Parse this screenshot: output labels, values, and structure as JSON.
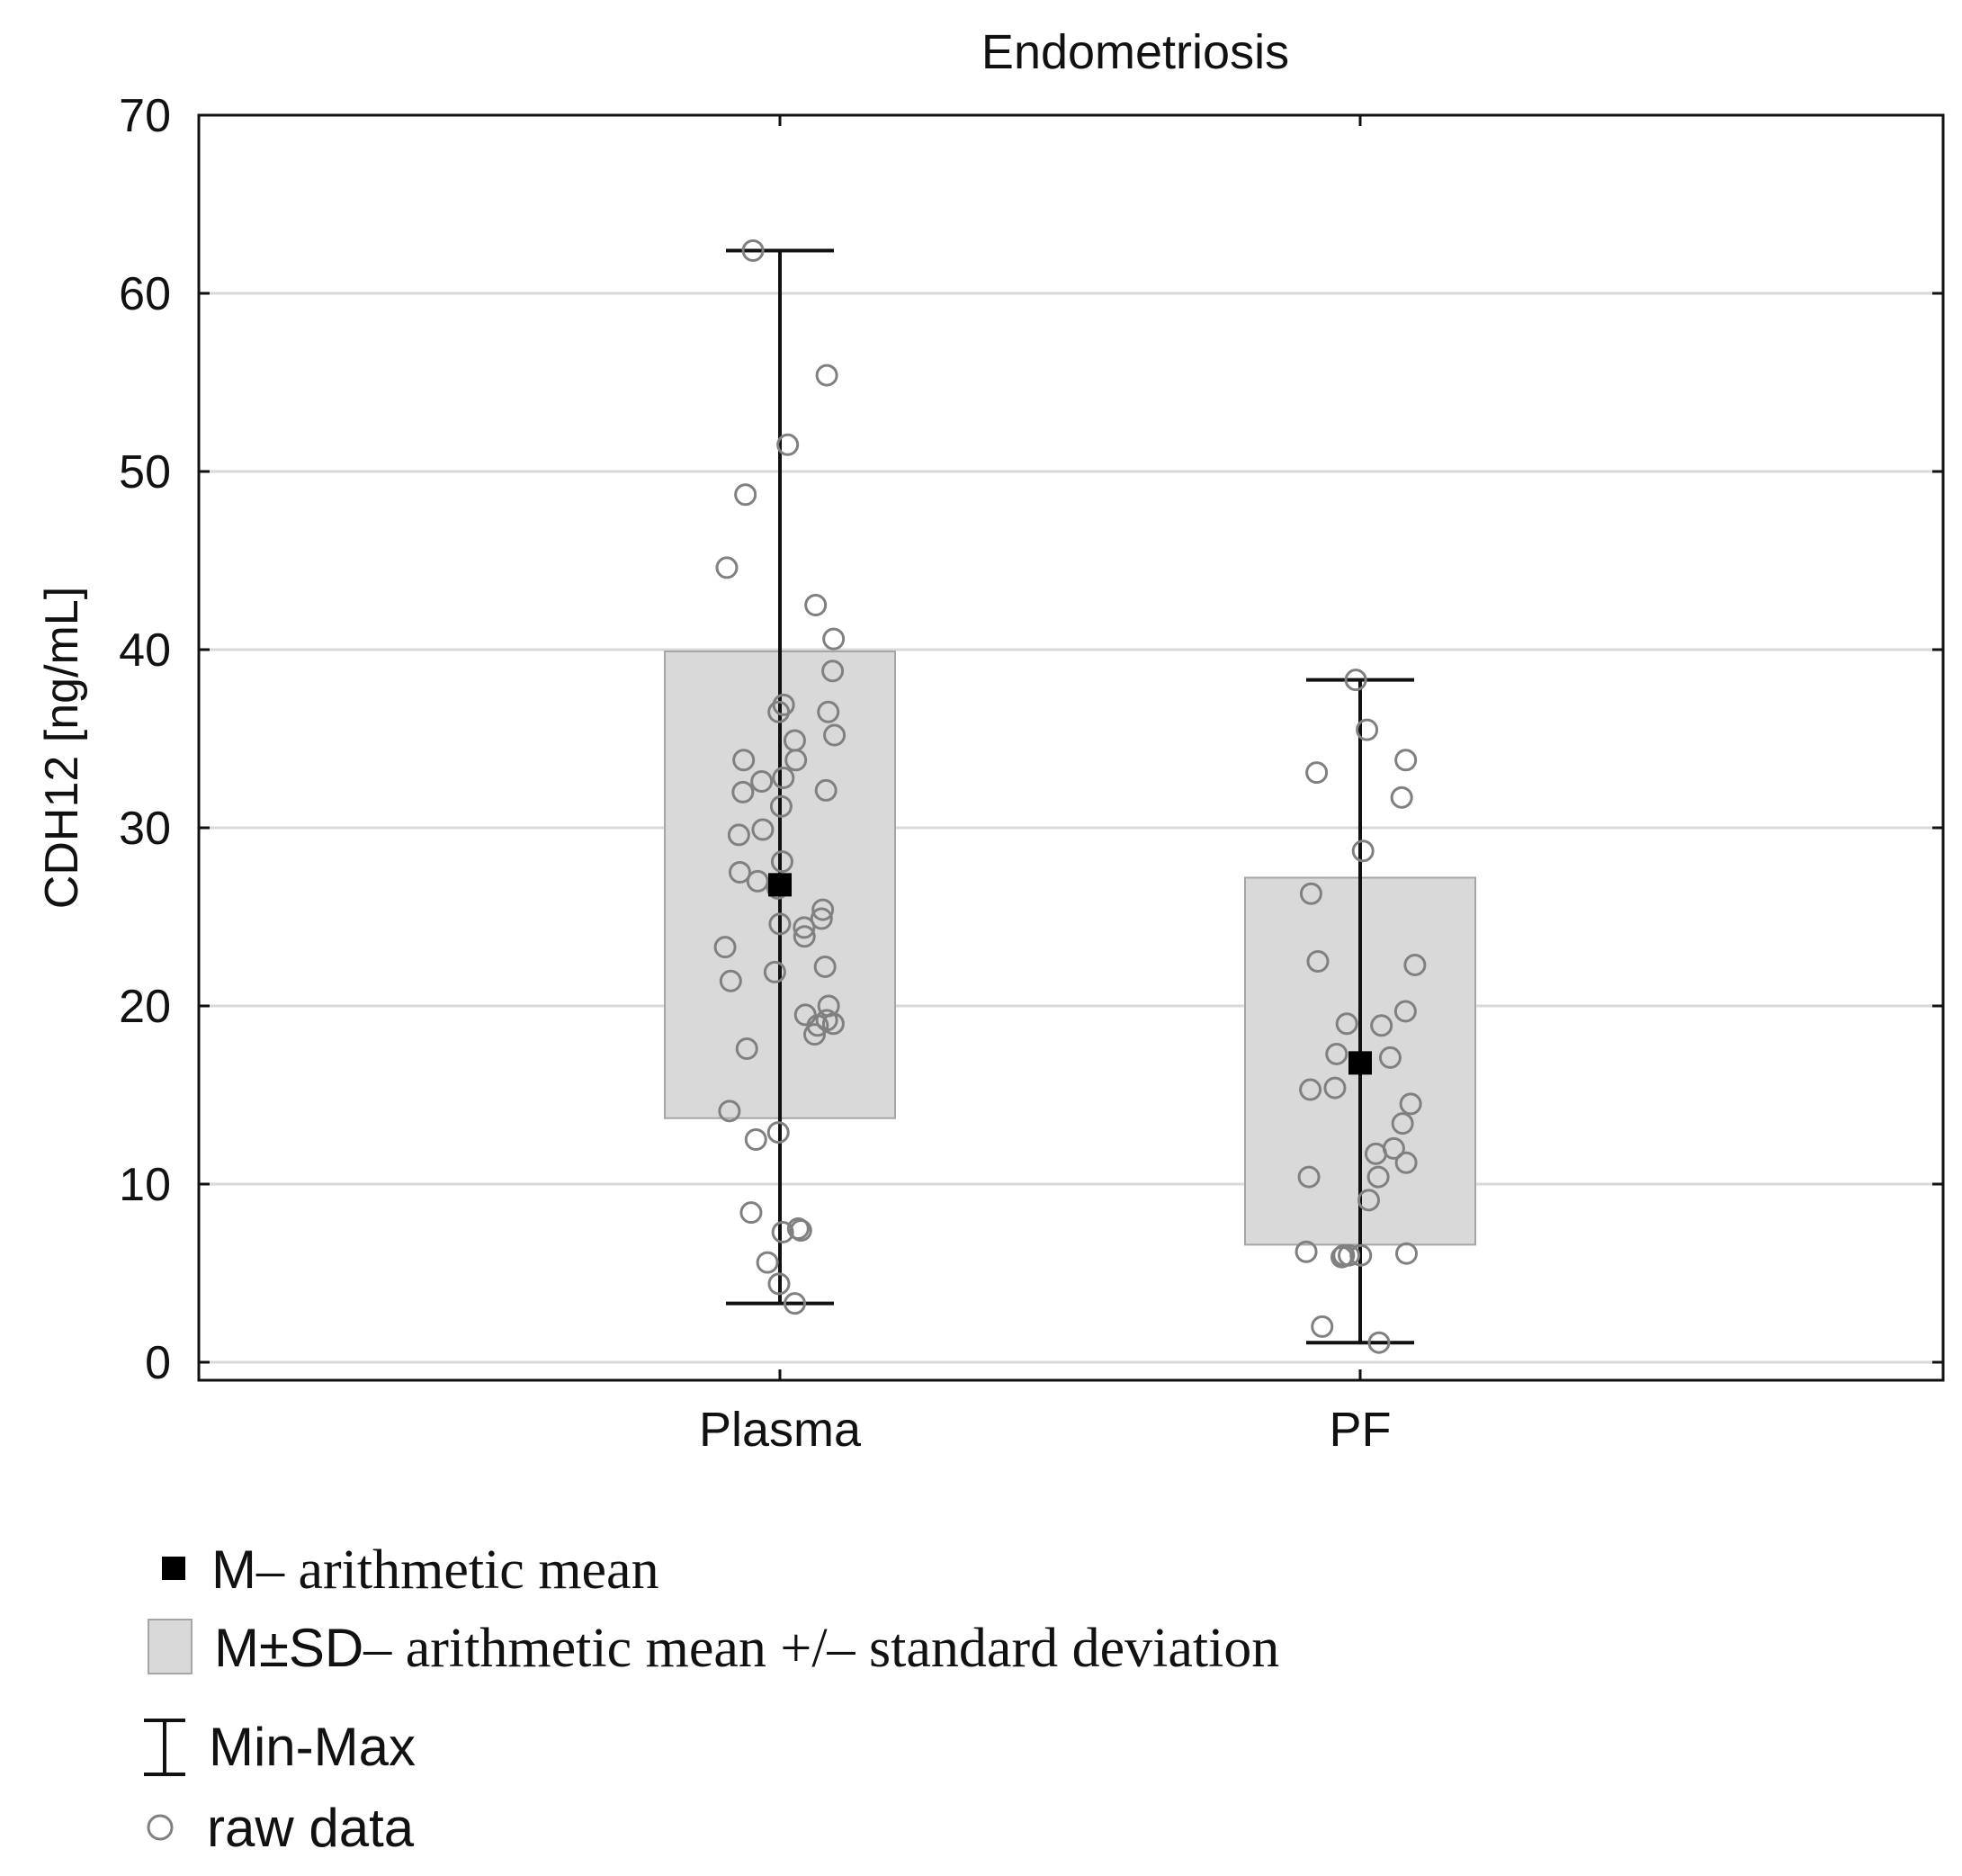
{
  "colors": {
    "background": "#ffffff",
    "frame": "#111111",
    "grid": "#d9d9d9",
    "sd_box_fill": "#d9d9d9",
    "sd_box_stroke": "#a6a6a6",
    "whisker": "#111111",
    "mean_marker": "#000000",
    "raw_point_stroke": "#808080"
  },
  "chart_data": {
    "type": "box",
    "title": "Endometriosis",
    "xlabel": "",
    "ylabel": "CDH12 [ng/mL]",
    "ylim": [
      0,
      70
    ],
    "yticks": [
      0,
      10,
      20,
      30,
      40,
      50,
      60,
      70
    ],
    "grid": "horizontal",
    "categories": [
      "Plasma",
      "PF"
    ],
    "groups": [
      {
        "name": "Plasma",
        "mean": 26.8,
        "sd_low": 13.7,
        "sd_high": 39.9,
        "min": 3.3,
        "max": 62.4,
        "raw_data": [
          62.4,
          55.4,
          51.5,
          48.7,
          44.6,
          42.5,
          40.6,
          38.8,
          36.9,
          36.5,
          36.5,
          35.2,
          34.9,
          33.8,
          33.8,
          32.8,
          32.6,
          32.1,
          32.0,
          31.2,
          29.9,
          29.6,
          28.1,
          27.5,
          27.0,
          26.6,
          25.4,
          24.9,
          24.6,
          24.4,
          23.9,
          23.3,
          22.2,
          21.9,
          21.4,
          20.0,
          19.5,
          19.2,
          19.0,
          18.9,
          18.4,
          17.6,
          14.1,
          12.9,
          12.5,
          8.4,
          7.5,
          7.4,
          7.3,
          5.6,
          4.4,
          3.3
        ]
      },
      {
        "name": "PF",
        "mean": 16.8,
        "sd_low": 6.6,
        "sd_high": 27.2,
        "min": 1.1,
        "max": 38.3,
        "raw_data": [
          38.3,
          35.5,
          33.8,
          33.1,
          31.7,
          28.7,
          26.3,
          22.5,
          22.3,
          19.7,
          19.0,
          18.9,
          17.3,
          17.1,
          15.4,
          15.3,
          14.5,
          13.4,
          12.0,
          11.7,
          11.2,
          10.4,
          10.4,
          9.1,
          6.2,
          6.1,
          6.0,
          6.0,
          6.0,
          5.9,
          2.0,
          1.1
        ]
      }
    ],
    "legend": {
      "position": "bottom-left",
      "items": [
        {
          "symbol": "filled-square",
          "prefix": "M",
          "text": "– arithmetic mean"
        },
        {
          "symbol": "grey-box",
          "prefix": "M±SD",
          "text": "– arithmetic mean +/– standard deviation"
        },
        {
          "symbol": "whisker",
          "prefix": "",
          "text": "Min-Max"
        },
        {
          "symbol": "open-circle",
          "prefix": "",
          "text": "raw data"
        }
      ]
    }
  }
}
